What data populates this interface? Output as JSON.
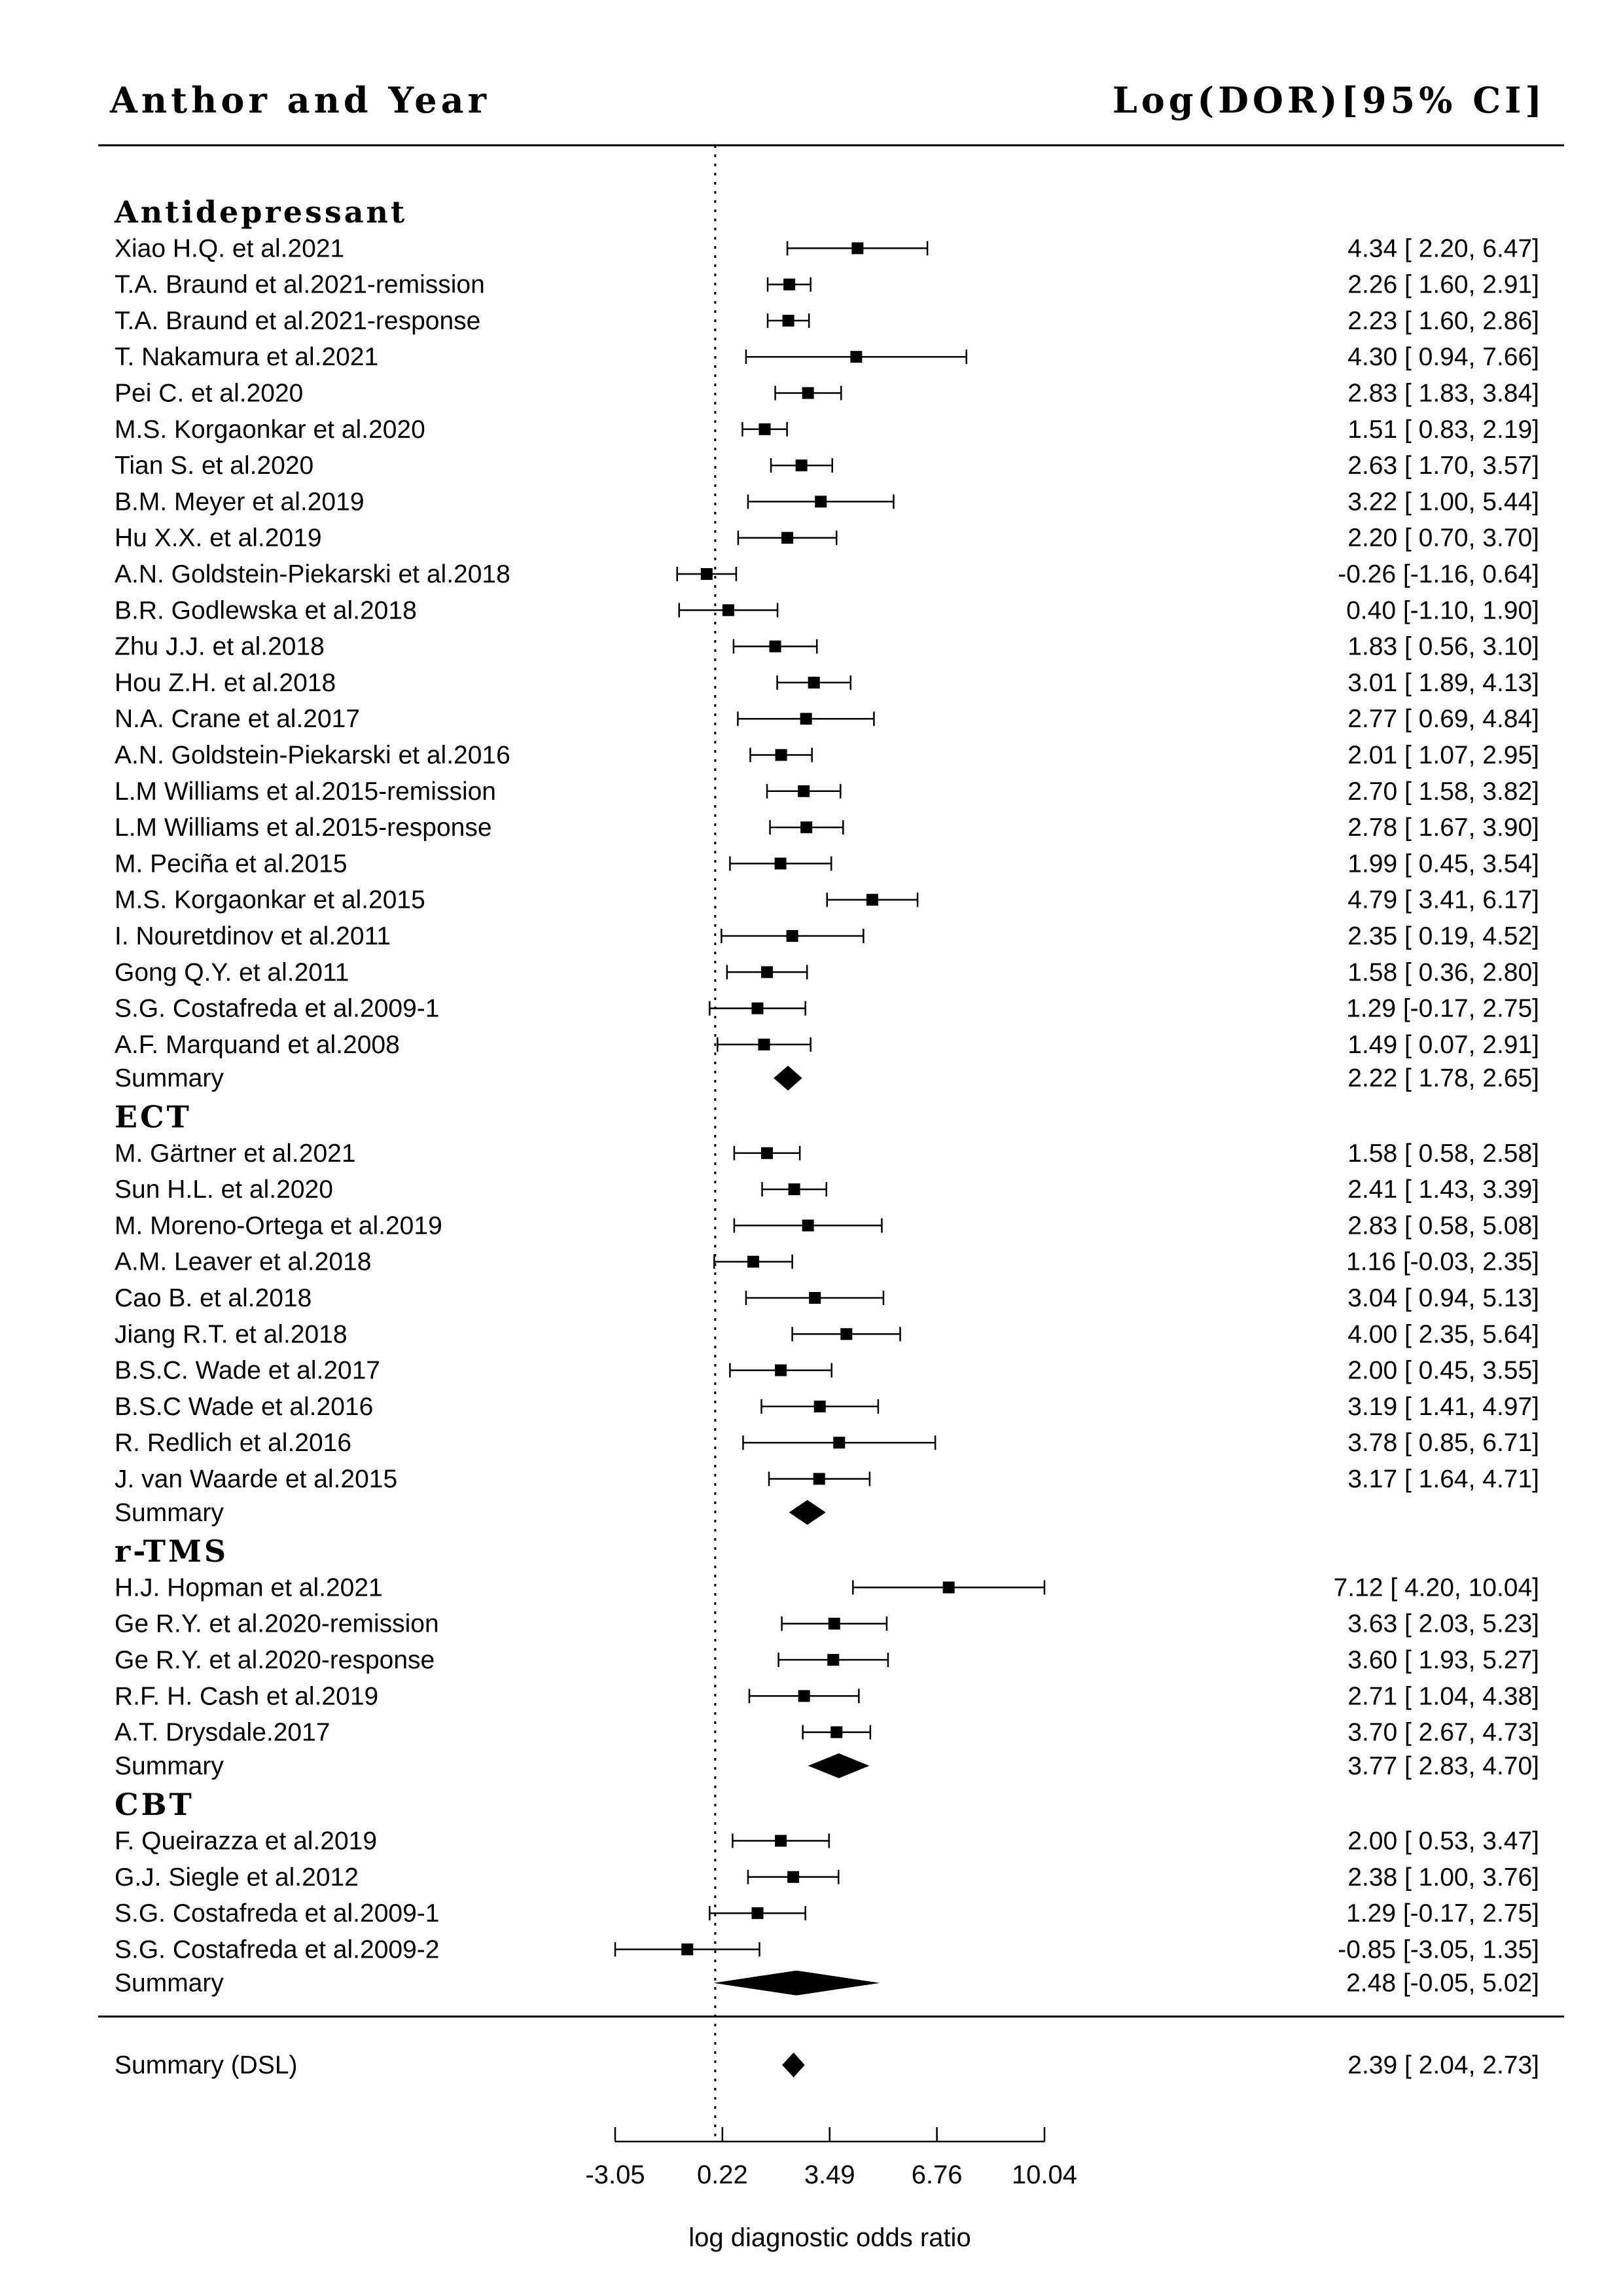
{
  "chart_data": {
    "type": "forest",
    "header_left": "Anthor and Year",
    "header_right": "Log(DOR)[95% CI]",
    "xlabel": "log diagnostic odds ratio",
    "xticks": [
      -3.05,
      0.22,
      3.49,
      6.76,
      10.04
    ],
    "xtick_labels": [
      "-3.05",
      "0.22",
      "3.49",
      "6.76",
      "10.04"
    ],
    "xlim": [
      -3.05,
      10.04
    ],
    "reference_line": 0,
    "groups": [
      {
        "name": "Antidepressant",
        "studies": [
          {
            "label": "Xiao H.Q. et al.2021",
            "est": 4.34,
            "lo": 2.2,
            "hi": 6.47,
            "text": "4.34 [ 2.20,  6.47]"
          },
          {
            "label": "T.A. Braund et al.2021-remission",
            "est": 2.26,
            "lo": 1.6,
            "hi": 2.91,
            "text": "2.26 [ 1.60,  2.91]"
          },
          {
            "label": "T.A. Braund et al.2021-response",
            "est": 2.23,
            "lo": 1.6,
            "hi": 2.86,
            "text": "2.23 [ 1.60,  2.86]"
          },
          {
            "label": "T. Nakamura et al.2021",
            "est": 4.3,
            "lo": 0.94,
            "hi": 7.66,
            "text": "4.30 [ 0.94,  7.66]"
          },
          {
            "label": "Pei C. et al.2020",
            "est": 2.83,
            "lo": 1.83,
            "hi": 3.84,
            "text": "2.83 [ 1.83,  3.84]"
          },
          {
            "label": "M.S. Korgaonkar et al.2020",
            "est": 1.51,
            "lo": 0.83,
            "hi": 2.19,
            "text": "1.51 [ 0.83,  2.19]"
          },
          {
            "label": "Tian S. et al.2020",
            "est": 2.63,
            "lo": 1.7,
            "hi": 3.57,
            "text": "2.63 [ 1.70,  3.57]"
          },
          {
            "label": "B.M. Meyer et al.2019",
            "est": 3.22,
            "lo": 1.0,
            "hi": 5.44,
            "text": "3.22 [ 1.00,  5.44]"
          },
          {
            "label": "Hu X.X. et al.2019",
            "est": 2.2,
            "lo": 0.7,
            "hi": 3.7,
            "text": "2.20 [ 0.70,  3.70]"
          },
          {
            "label": "A.N. Goldstein-Piekarski et al.2018",
            "est": -0.26,
            "lo": -1.16,
            "hi": 0.64,
            "text": "-0.26 [-1.16,  0.64]"
          },
          {
            "label": "B.R. Godlewska et al.2018",
            "est": 0.4,
            "lo": -1.1,
            "hi": 1.9,
            "text": "0.40 [-1.10,  1.90]"
          },
          {
            "label": "Zhu J.J. et al.2018",
            "est": 1.83,
            "lo": 0.56,
            "hi": 3.1,
            "text": "1.83 [ 0.56,  3.10]"
          },
          {
            "label": "Hou Z.H. et al.2018",
            "est": 3.01,
            "lo": 1.89,
            "hi": 4.13,
            "text": "3.01 [ 1.89,  4.13]"
          },
          {
            "label": "N.A. Crane et al.2017",
            "est": 2.77,
            "lo": 0.69,
            "hi": 4.84,
            "text": "2.77 [ 0.69,  4.84]"
          },
          {
            "label": "A.N. Goldstein-Piekarski et al.2016",
            "est": 2.01,
            "lo": 1.07,
            "hi": 2.95,
            "text": "2.01 [ 1.07,  2.95]"
          },
          {
            "label": "L.M Williams et al.2015-remission",
            "est": 2.7,
            "lo": 1.58,
            "hi": 3.82,
            "text": "2.70 [ 1.58,  3.82]"
          },
          {
            "label": "L.M Williams et al.2015-response",
            "est": 2.78,
            "lo": 1.67,
            "hi": 3.9,
            "text": "2.78 [ 1.67,  3.90]"
          },
          {
            "label": "M. Peciña et al.2015",
            "est": 1.99,
            "lo": 0.45,
            "hi": 3.54,
            "text": "1.99 [ 0.45,  3.54]"
          },
          {
            "label": "M.S. Korgaonkar et al.2015",
            "est": 4.79,
            "lo": 3.41,
            "hi": 6.17,
            "text": "4.79 [ 3.41,  6.17]"
          },
          {
            "label": "I. Nouretdinov et al.2011",
            "est": 2.35,
            "lo": 0.19,
            "hi": 4.52,
            "text": "2.35 [ 0.19,  4.52]"
          },
          {
            "label": "Gong Q.Y. et al.2011",
            "est": 1.58,
            "lo": 0.36,
            "hi": 2.8,
            "text": "1.58 [ 0.36,  2.80]"
          },
          {
            "label": "S.G. Costafreda et al.2009-1",
            "est": 1.29,
            "lo": -0.17,
            "hi": 2.75,
            "text": "1.29 [-0.17,  2.75]"
          },
          {
            "label": "A.F. Marquand et al.2008",
            "est": 1.49,
            "lo": 0.07,
            "hi": 2.91,
            "text": "1.49 [ 0.07,  2.91]"
          }
        ],
        "summary": {
          "label": "Summary",
          "est": 2.22,
          "lo": 1.78,
          "hi": 2.65,
          "text": "2.22 [ 1.78,  2.65]"
        }
      },
      {
        "name": "ECT",
        "studies": [
          {
            "label": "M. Gärtner et al.2021",
            "est": 1.58,
            "lo": 0.58,
            "hi": 2.58,
            "text": "1.58 [ 0.58,  2.58]"
          },
          {
            "label": "Sun H.L. et al.2020",
            "est": 2.41,
            "lo": 1.43,
            "hi": 3.39,
            "text": "2.41 [ 1.43,  3.39]"
          },
          {
            "label": "M. Moreno-Ortega et al.2019",
            "est": 2.83,
            "lo": 0.58,
            "hi": 5.08,
            "text": "2.83 [ 0.58,  5.08]"
          },
          {
            "label": "A.M. Leaver et al.2018",
            "est": 1.16,
            "lo": -0.03,
            "hi": 2.35,
            "text": "1.16 [-0.03,  2.35]"
          },
          {
            "label": "Cao B. et al.2018",
            "est": 3.04,
            "lo": 0.94,
            "hi": 5.13,
            "text": "3.04 [ 0.94,  5.13]"
          },
          {
            "label": "Jiang R.T. et al.2018",
            "est": 4.0,
            "lo": 2.35,
            "hi": 5.64,
            "text": "4.00 [ 2.35,  5.64]"
          },
          {
            "label": "B.S.C. Wade et al.2017",
            "est": 2.0,
            "lo": 0.45,
            "hi": 3.55,
            "text": "2.00 [ 0.45,  3.55]"
          },
          {
            "label": "B.S.C Wade et al.2016",
            "est": 3.19,
            "lo": 1.41,
            "hi": 4.97,
            "text": "3.19 [ 1.41,  4.97]"
          },
          {
            "label": "R. Redlich et al.2016",
            "est": 3.78,
            "lo": 0.85,
            "hi": 6.71,
            "text": "3.78 [ 0.85,  6.71]"
          },
          {
            "label": "J. van Waarde et al.2015",
            "est": 3.17,
            "lo": 1.64,
            "hi": 4.71,
            "text": "3.17 [ 1.64,  4.71]"
          }
        ],
        "summary": {
          "label": "Summary",
          "est": 2.81,
          "lo": 2.25,
          "hi": 3.37,
          "text": ""
        }
      },
      {
        "name": "r-TMS",
        "studies": [
          {
            "label": "H.J. Hopman et al.2021",
            "est": 7.12,
            "lo": 4.2,
            "hi": 10.04,
            "text": "7.12 [ 4.20, 10.04]"
          },
          {
            "label": "Ge R.Y. et al.2020-remission",
            "est": 3.63,
            "lo": 2.03,
            "hi": 5.23,
            "text": "3.63 [ 2.03,  5.23]"
          },
          {
            "label": "Ge R.Y. et al.2020-response",
            "est": 3.6,
            "lo": 1.93,
            "hi": 5.27,
            "text": "3.60 [ 1.93,  5.27]"
          },
          {
            "label": "R.F. H. Cash et al.2019",
            "est": 2.71,
            "lo": 1.04,
            "hi": 4.38,
            "text": "2.71 [ 1.04,  4.38]"
          },
          {
            "label": "A.T. Drysdale.2017",
            "est": 3.7,
            "lo": 2.67,
            "hi": 4.73,
            "text": "3.70 [ 2.67,  4.73]"
          }
        ],
        "summary": {
          "label": "Summary",
          "est": 3.77,
          "lo": 2.83,
          "hi": 4.7,
          "text": "3.77 [ 2.83,  4.70]"
        }
      },
      {
        "name": "CBT",
        "studies": [
          {
            "label": "F. Queirazza et al.2019",
            "est": 2.0,
            "lo": 0.53,
            "hi": 3.47,
            "text": "2.00 [ 0.53,  3.47]"
          },
          {
            "label": "G.J. Siegle et al.2012",
            "est": 2.38,
            "lo": 1.0,
            "hi": 3.76,
            "text": "2.38 [ 1.00,  3.76]"
          },
          {
            "label": "S.G. Costafreda et al.2009-1",
            "est": 1.29,
            "lo": -0.17,
            "hi": 2.75,
            "text": "1.29 [-0.17,  2.75]"
          },
          {
            "label": "S.G. Costafreda et al.2009-2",
            "est": -0.85,
            "lo": -3.05,
            "hi": 1.35,
            "text": "-0.85 [-3.05,  1.35]"
          }
        ],
        "summary": {
          "label": "Summary",
          "est": 2.48,
          "lo": -0.05,
          "hi": 5.02,
          "text": "2.48 [-0.05,  5.02]"
        }
      }
    ],
    "overall": {
      "label": "Summary (DSL)",
      "est": 2.39,
      "lo": 2.04,
      "hi": 2.73,
      "text": "2.39 [ 2.04,  2.73]"
    }
  }
}
